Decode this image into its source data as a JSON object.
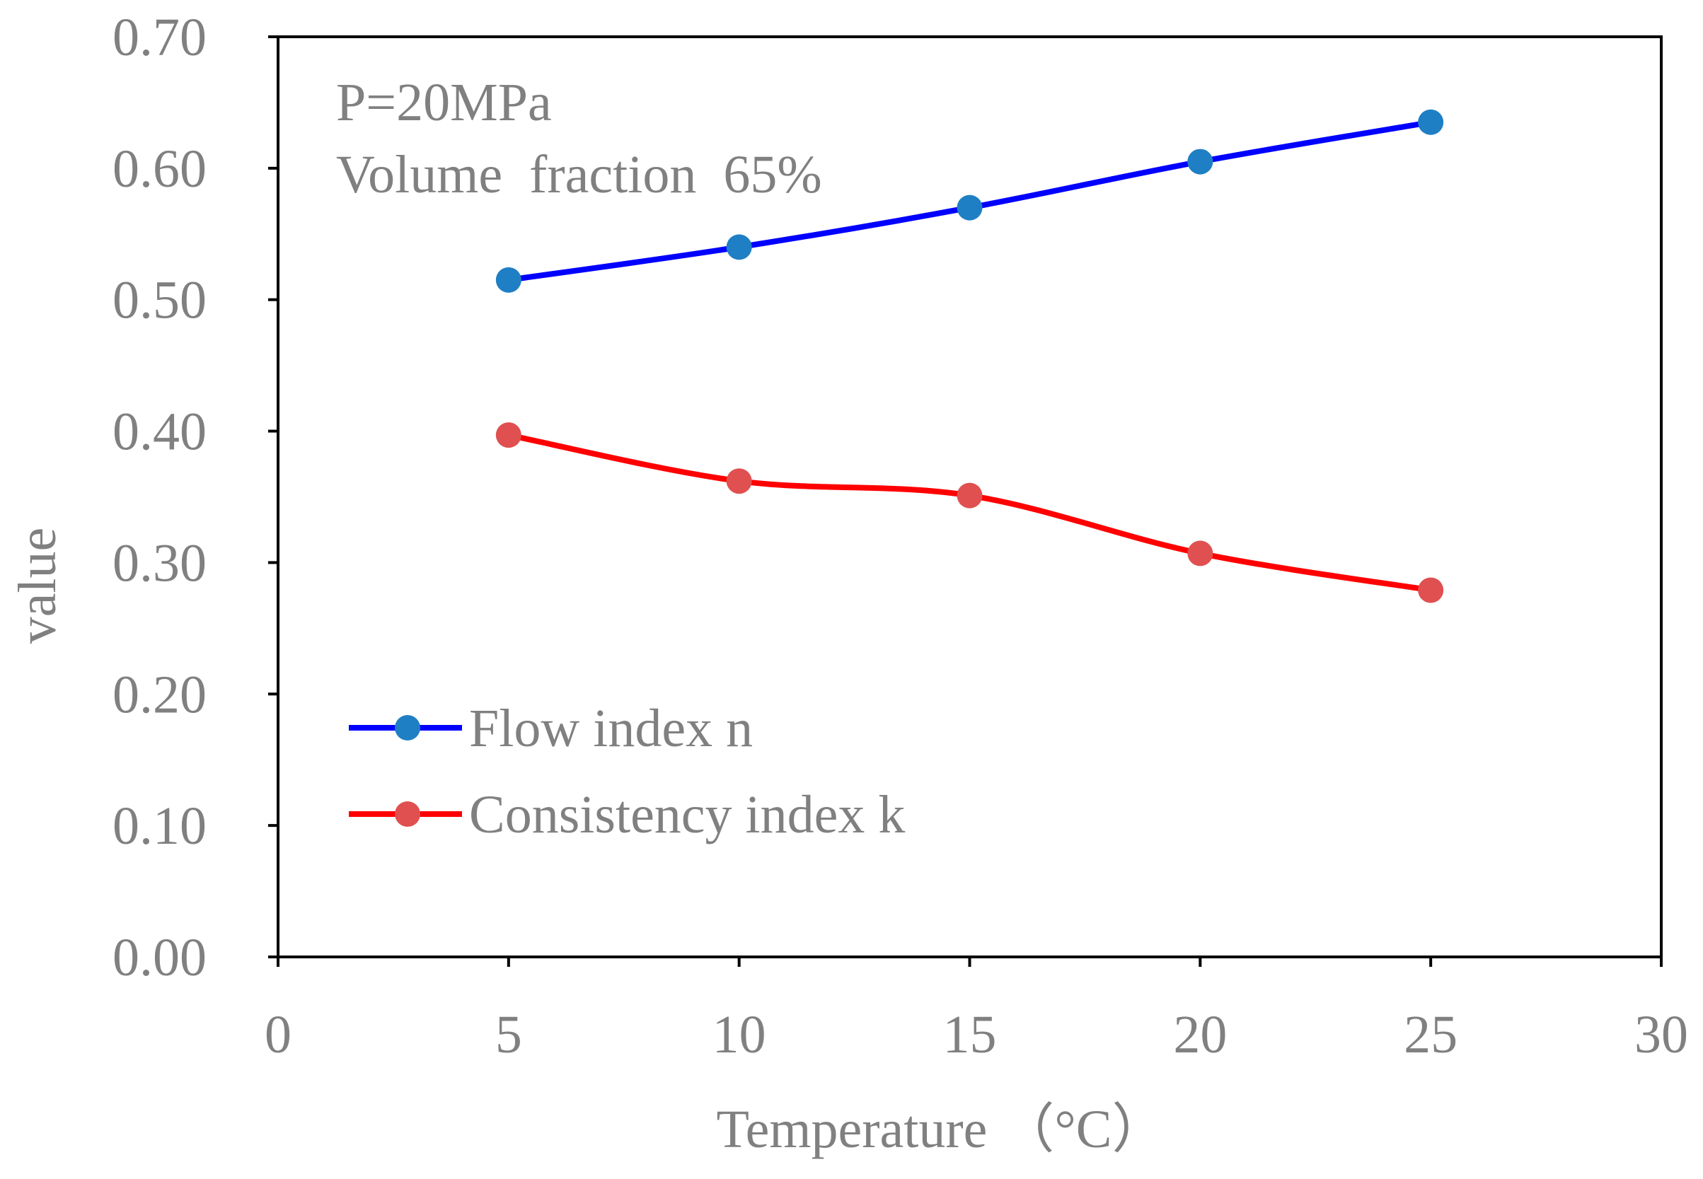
{
  "colors": {
    "flow_line": "#0000ff",
    "flow_marker": "#1f7fc4",
    "consistency_line": "#ff0000",
    "consistency_marker": "#e05050",
    "text": "#808080",
    "axis": "#000000"
  },
  "annotations": {
    "line1": "P=20MPa",
    "line2": "Volume  fraction  65%"
  },
  "chart_data": {
    "type": "line",
    "title": "",
    "xlabel": "Temperature （°C）",
    "ylabel": "value",
    "xlim": [
      0,
      30
    ],
    "ylim": [
      0,
      0.7
    ],
    "x_ticks": [
      "0",
      "5",
      "10",
      "15",
      "20",
      "25",
      "30"
    ],
    "y_ticks": [
      "0.00",
      "0.10",
      "0.20",
      "0.30",
      "0.40",
      "0.50",
      "0.60",
      "0.70"
    ],
    "grid": false,
    "legend_position": "bottom-left",
    "x": [
      5,
      10,
      15,
      20,
      25
    ],
    "series": [
      {
        "name": "Flow index n",
        "values": [
          0.515,
          0.54,
          0.57,
          0.605,
          0.635
        ],
        "line_color": "#0000ff",
        "marker_color": "#1f7fc4"
      },
      {
        "name": "Consistency index k",
        "values": [
          0.397,
          0.362,
          0.351,
          0.307,
          0.279
        ],
        "line_color": "#ff0000",
        "marker_color": "#e05050"
      }
    ]
  }
}
